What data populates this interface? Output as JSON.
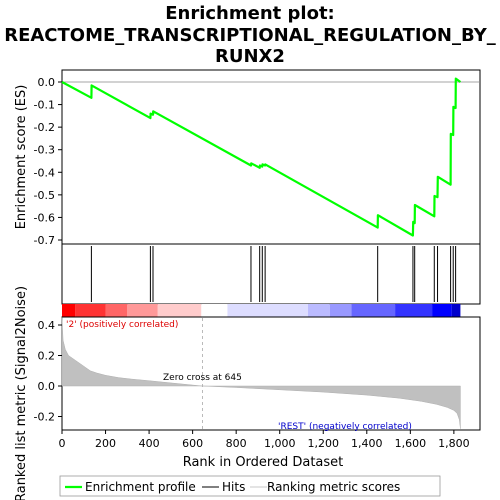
{
  "chart_data": {
    "type": "line",
    "title_lines": [
      "Enrichment plot:",
      "REACTOME_TRANSCRIPTIONAL_REGULATION_BY_",
      "RUNX2"
    ],
    "ylabel_top": "Enrichment score (ES)",
    "ylabel_bottom": "Ranked list metric (Signal2Noise)",
    "xlabel": "Rank in Ordered Dataset",
    "xlim": [
      0,
      1920
    ],
    "es_ylim": [
      -0.72,
      0.05
    ],
    "es_yticks": [
      "0.0",
      "-0.1",
      "-0.2",
      "-0.3",
      "-0.4",
      "-0.5",
      "-0.6",
      "-0.7"
    ],
    "es_ytick_values": [
      0.0,
      -0.1,
      -0.2,
      -0.3,
      -0.4,
      -0.5,
      -0.6,
      -0.7
    ],
    "metric_ylim": [
      -0.28,
      0.45
    ],
    "metric_yticks": [
      "0.4",
      "0.2",
      "0.0",
      "-0.2"
    ],
    "metric_ytick_values": [
      0.4,
      0.2,
      0.0,
      -0.2
    ],
    "xticks": [
      "0",
      "200",
      "400",
      "600",
      "800",
      "1,000",
      "1,200",
      "1,400",
      "1,600",
      "1,800"
    ],
    "xtick_values": [
      0,
      200,
      400,
      600,
      800,
      1000,
      1200,
      1400,
      1600,
      1800
    ],
    "series": [
      {
        "name": "Enrichment profile",
        "color": "#00ff00",
        "x": [
          0,
          135,
          136,
          406,
          407,
          418,
          419,
          868,
          869,
          908,
          909,
          920,
          921,
          933,
          934,
          1450,
          1451,
          1612,
          1613,
          1620,
          1621,
          1710,
          1711,
          1725,
          1726,
          1785,
          1786,
          1797,
          1798,
          1808,
          1809,
          1830
        ],
        "y": [
          0.0,
          -0.07,
          -0.015,
          -0.16,
          -0.14,
          -0.145,
          -0.13,
          -0.37,
          -0.36,
          -0.38,
          -0.37,
          -0.375,
          -0.365,
          -0.37,
          -0.365,
          -0.645,
          -0.59,
          -0.68,
          -0.62,
          -0.625,
          -0.545,
          -0.595,
          -0.505,
          -0.51,
          -0.42,
          -0.455,
          -0.23,
          -0.235,
          -0.11,
          -0.115,
          0.015,
          0.0
        ]
      }
    ],
    "hits": [
      135,
      406,
      418,
      868,
      908,
      920,
      933,
      1450,
      1612,
      1620,
      1710,
      1725,
      1785,
      1797,
      1808
    ],
    "metric_profile": {
      "x": [
        0,
        5,
        15,
        30,
        60,
        100,
        130,
        160,
        200,
        260,
        320,
        400,
        500,
        645,
        800,
        1000,
        1200,
        1400,
        1550,
        1650,
        1720,
        1770,
        1800,
        1815,
        1825,
        1830
      ],
      "y": [
        0.45,
        0.3,
        0.24,
        0.2,
        0.17,
        0.13,
        0.1,
        0.085,
        0.07,
        0.055,
        0.045,
        0.035,
        0.02,
        0.0,
        -0.01,
        -0.025,
        -0.04,
        -0.06,
        -0.08,
        -0.1,
        -0.12,
        -0.14,
        -0.16,
        -0.18,
        -0.22,
        -0.28
      ]
    },
    "color_bar": [
      "#ff0000",
      "#ff3333",
      "#ff6666",
      "#ff9999",
      "#ffcccc",
      "#ffffff",
      "#ddddff",
      "#bbbbff",
      "#9999ff",
      "#6666ff",
      "#3333ff",
      "#0000ff",
      "#0000cc"
    ],
    "color_bar_bounds": [
      0,
      60,
      200,
      300,
      440,
      640,
      760,
      1130,
      1230,
      1330,
      1530,
      1700,
      1790,
      1830
    ],
    "annotations": {
      "positive": "'2' (positively correlated)",
      "negative": "'REST' (negatively correlated)",
      "zero_cross": "Zero cross at 645",
      "zero_cross_x": 645
    },
    "legend": [
      {
        "label": "Enrichment profile",
        "color": "#00ff00"
      },
      {
        "label": "Hits",
        "color": "#000000"
      },
      {
        "label": "Ranking metric scores",
        "color": "#c8c8c8"
      }
    ]
  }
}
